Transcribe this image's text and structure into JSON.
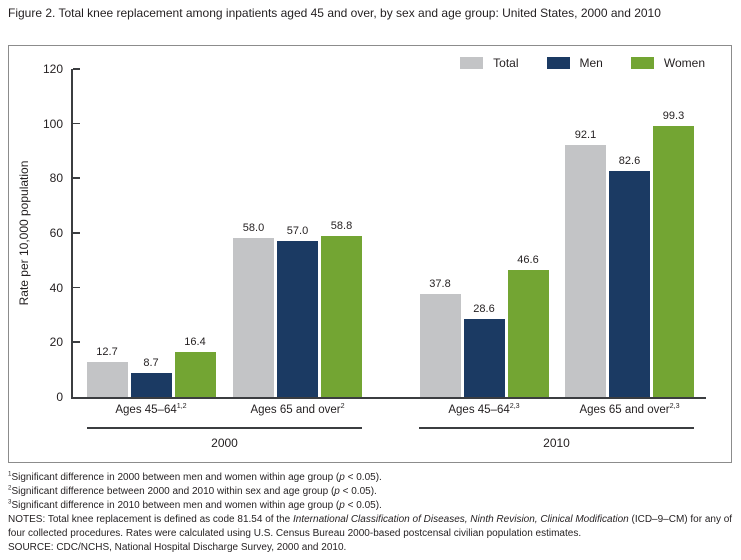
{
  "figure": {
    "title": "Figure 2. Total knee replacement among inpatients aged 45 and over, by sex and age group: United States, 2000 and 2010"
  },
  "chart_data": {
    "type": "bar",
    "title": "Total knee replacement among inpatients aged 45 and over, by sex and age group: United States, 2000 and 2010",
    "ylabel": "Rate per 10,000 population",
    "ylim": [
      0,
      120
    ],
    "ytick_interval": 20,
    "grid": false,
    "legend_position": "top-right",
    "series": [
      {
        "name": "Total",
        "color": "#c3c4c6",
        "values": [
          12.7,
          58.0,
          37.8,
          92.1
        ]
      },
      {
        "name": "Men",
        "color": "#1b3a63",
        "values": [
          8.7,
          57.0,
          28.6,
          82.6
        ]
      },
      {
        "name": "Women",
        "color": "#73a533",
        "values": [
          16.4,
          58.8,
          46.6,
          99.3
        ]
      }
    ],
    "categories": [
      {
        "label": "Ages 45–64",
        "sup": "1,2",
        "year": "2000"
      },
      {
        "label": "Ages 65 and over",
        "sup": "2",
        "year": "2000"
      },
      {
        "label": "Ages 45–64",
        "sup": "2,3",
        "year": "2010"
      },
      {
        "label": "Ages 65 and over",
        "sup": "2,3",
        "year": "2010"
      }
    ],
    "year_labels": [
      "2000",
      "2010"
    ]
  },
  "footnotes": [
    {
      "sup": "1",
      "pre": "Significant difference in 2000 between men and women within age group (",
      "pvar": "p",
      "post": " < 0.05)."
    },
    {
      "sup": "2",
      "pre": "Significant difference between 2000 and 2010 within sex and age group (",
      "pvar": "p",
      "post": " < 0.05)."
    },
    {
      "sup": "3",
      "pre": "Significant difference in 2010 between men and women within age group (",
      "pvar": "p",
      "post": " < 0.05)."
    }
  ],
  "notes": {
    "pre": "NOTES: Total knee replacement is defined as code 81.54 of the ",
    "italic": "International Classification of Diseases, Ninth Revision, Clinical Modification",
    "post": " (ICD–9–CM) for any of four collected procedures. Rates were calculated using U.S. Census Bureau 2000-based postcensal civilian population estimates."
  },
  "source": "SOURCE: CDC/NCHS, National Hospital Discharge Survey, 2000 and 2010."
}
